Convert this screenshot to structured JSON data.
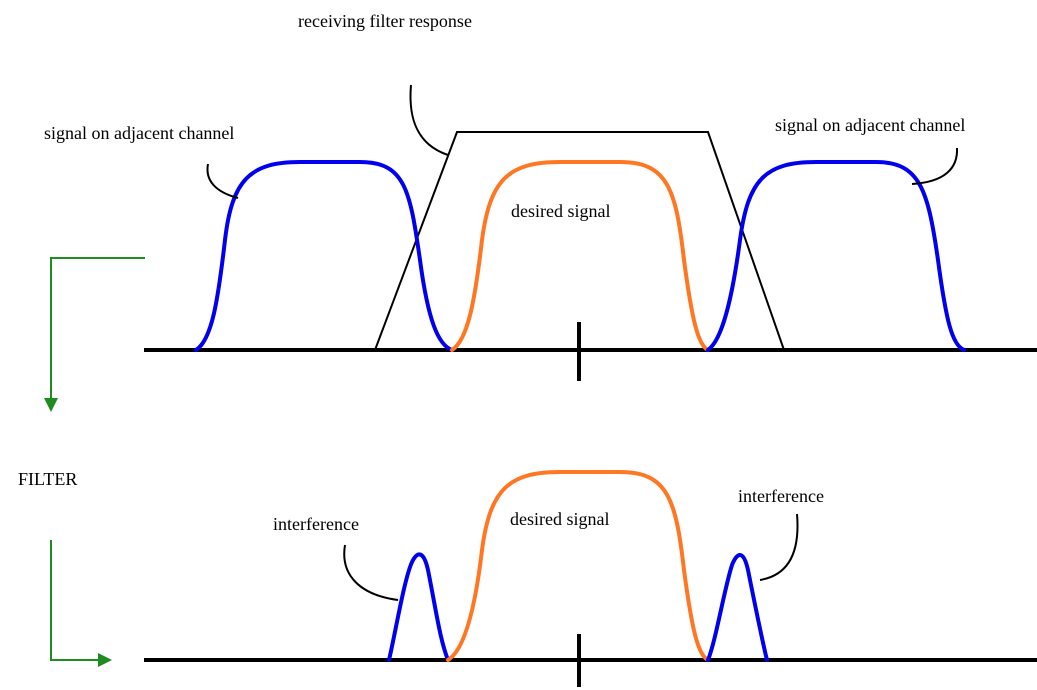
{
  "labels": {
    "filter_response": "receiving filter  response",
    "adjacent_left": "signal on adjacent channel",
    "adjacent_right": "signal on adjacent channel",
    "desired_top": "desired signal",
    "filter": "FILTER",
    "interference_left": "interference",
    "interference_right": "interference",
    "desired_bottom": "desired signal"
  },
  "colors": {
    "adjacent_signal": "#0000ee",
    "desired_signal": "#ff7722",
    "filter_response": "#000000",
    "flow_arrow": "#1e8c1e",
    "axis": "#000000"
  }
}
